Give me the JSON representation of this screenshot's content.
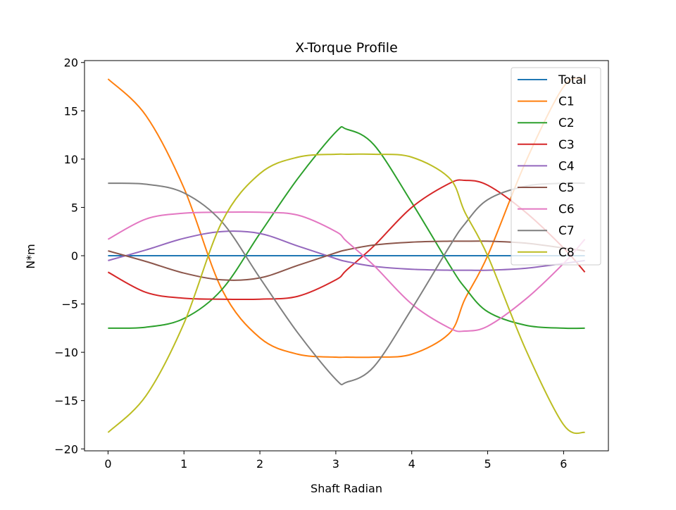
{
  "chart_data": {
    "type": "line",
    "title": "X-Torque Profile",
    "xlabel": "Shaft Radian",
    "ylabel": "N*m",
    "xlim": [
      -0.31,
      6.59
    ],
    "ylim": [
      -20.2,
      20.2
    ],
    "xticks": [
      0,
      1,
      2,
      3,
      4,
      5,
      6
    ],
    "xtick_labels": [
      "0",
      "1",
      "2",
      "3",
      "4",
      "5",
      "6"
    ],
    "yticks": [
      -20,
      -15,
      -10,
      -5,
      0,
      5,
      10,
      15,
      20
    ],
    "ytick_labels": [
      "−20",
      "−15",
      "−10",
      "−5",
      "0",
      "5",
      "10",
      "15",
      "20"
    ],
    "grid": false,
    "legend_position": "top-right",
    "x": [
      0,
      0.5,
      1,
      1.5,
      2,
      2.5,
      3,
      3.14,
      3.5,
      4,
      4.5,
      4.7,
      5,
      5.5,
      6,
      6.28
    ],
    "series": [
      {
        "name": "Total",
        "color": "#1f77b4",
        "values": [
          0,
          0,
          0,
          0,
          0,
          0,
          0,
          0,
          0,
          0,
          0,
          0,
          0,
          0,
          0,
          0
        ]
      },
      {
        "name": "C1",
        "color": "#ff7f0e",
        "values": [
          18.3,
          14.5,
          7.0,
          -3.5,
          -8.5,
          -10.2,
          -10.5,
          -10.5,
          -10.5,
          -10.2,
          -8.0,
          -4.5,
          0.0,
          9.7,
          17.5,
          18.3
        ]
      },
      {
        "name": "C2",
        "color": "#2ca02c",
        "values": [
          -7.5,
          -7.4,
          -6.5,
          -3.5,
          2.3,
          8.0,
          12.8,
          13.1,
          11.5,
          5.5,
          -1.0,
          -3.3,
          -5.8,
          -7.2,
          -7.5,
          -7.5
        ]
      },
      {
        "name": "C3",
        "color": "#d62728",
        "values": [
          -1.7,
          -3.8,
          -4.4,
          -4.5,
          -4.5,
          -4.2,
          -2.5,
          -1.5,
          1.0,
          5.0,
          7.5,
          7.8,
          7.3,
          4.5,
          0.8,
          -1.7
        ]
      },
      {
        "name": "C4",
        "color": "#9467bd",
        "values": [
          -0.5,
          0.6,
          1.8,
          2.5,
          2.3,
          1.0,
          -0.3,
          -0.6,
          -1.1,
          -1.4,
          -1.5,
          -1.5,
          -1.5,
          -1.3,
          -0.8,
          -0.5
        ]
      },
      {
        "name": "C5",
        "color": "#8c564b",
        "values": [
          0.5,
          -0.6,
          -1.8,
          -2.5,
          -2.3,
          -1.0,
          0.3,
          0.6,
          1.1,
          1.4,
          1.5,
          1.5,
          1.5,
          1.3,
          0.8,
          0.5
        ]
      },
      {
        "name": "C6",
        "color": "#e377c2",
        "values": [
          1.7,
          3.8,
          4.4,
          4.5,
          4.5,
          4.2,
          2.5,
          1.5,
          -1.0,
          -5.0,
          -7.5,
          -7.8,
          -7.3,
          -4.5,
          -0.8,
          1.7
        ]
      },
      {
        "name": "C7",
        "color": "#7f7f7f",
        "values": [
          7.5,
          7.4,
          6.5,
          3.5,
          -2.3,
          -8.0,
          -12.8,
          -13.1,
          -11.5,
          -5.5,
          1.0,
          3.3,
          5.8,
          7.2,
          7.5,
          7.5
        ]
      },
      {
        "name": "C8",
        "color": "#bcbd22",
        "values": [
          -18.3,
          -14.5,
          -7.0,
          3.5,
          8.5,
          10.2,
          10.5,
          10.5,
          10.5,
          10.2,
          8.0,
          4.5,
          0.0,
          -9.7,
          -17.5,
          -18.3
        ]
      }
    ]
  }
}
